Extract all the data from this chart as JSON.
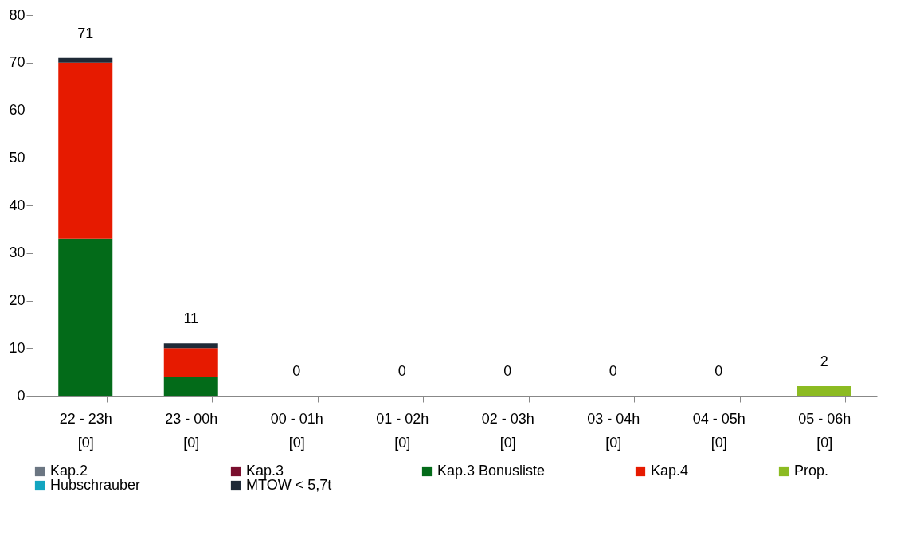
{
  "chart_data": {
    "type": "bar",
    "stacked": true,
    "categories": [
      "22 - 23h\n[0]",
      "23 - 00h\n[0]",
      "00 - 01h\n[0]",
      "01 - 02h\n[0]",
      "02 - 03h\n[0]",
      "03 - 04h\n[0]",
      "04 - 05h\n[0]",
      "05 - 06h\n[0]"
    ],
    "series": [
      {
        "name": "Kap.2",
        "color": "#6b7682",
        "values": [
          0,
          0,
          0,
          0,
          0,
          0,
          0,
          0
        ]
      },
      {
        "name": "Kap.3",
        "color": "#7a0f2e",
        "values": [
          0,
          0,
          0,
          0,
          0,
          0,
          0,
          0
        ]
      },
      {
        "name": "Kap.3 Bonusliste",
        "color": "#036b19",
        "values": [
          33,
          4,
          0,
          0,
          0,
          0,
          0,
          0
        ]
      },
      {
        "name": "Kap.4",
        "color": "#e61a00",
        "values": [
          37,
          6,
          0,
          0,
          0,
          0,
          0,
          0
        ]
      },
      {
        "name": "Prop.",
        "color": "#8cbb22",
        "values": [
          0,
          0,
          0,
          0,
          0,
          0,
          0,
          2
        ]
      },
      {
        "name": "Hubschrauber",
        "color": "#13a5c0",
        "values": [
          0,
          0,
          0,
          0,
          0,
          0,
          0,
          0
        ]
      },
      {
        "name": "MTOW < 5,7t",
        "color": "#1f2a37",
        "values": [
          1,
          1,
          0,
          0,
          0,
          0,
          0,
          0
        ]
      }
    ],
    "totals": [
      "71",
      "11",
      "0",
      "0",
      "0",
      "0",
      "0",
      "2"
    ],
    "ylim": [
      0,
      80
    ],
    "yticks": [
      0,
      10,
      20,
      30,
      40,
      50,
      60,
      70,
      80
    ],
    "grid": false,
    "legend": "bottom"
  }
}
